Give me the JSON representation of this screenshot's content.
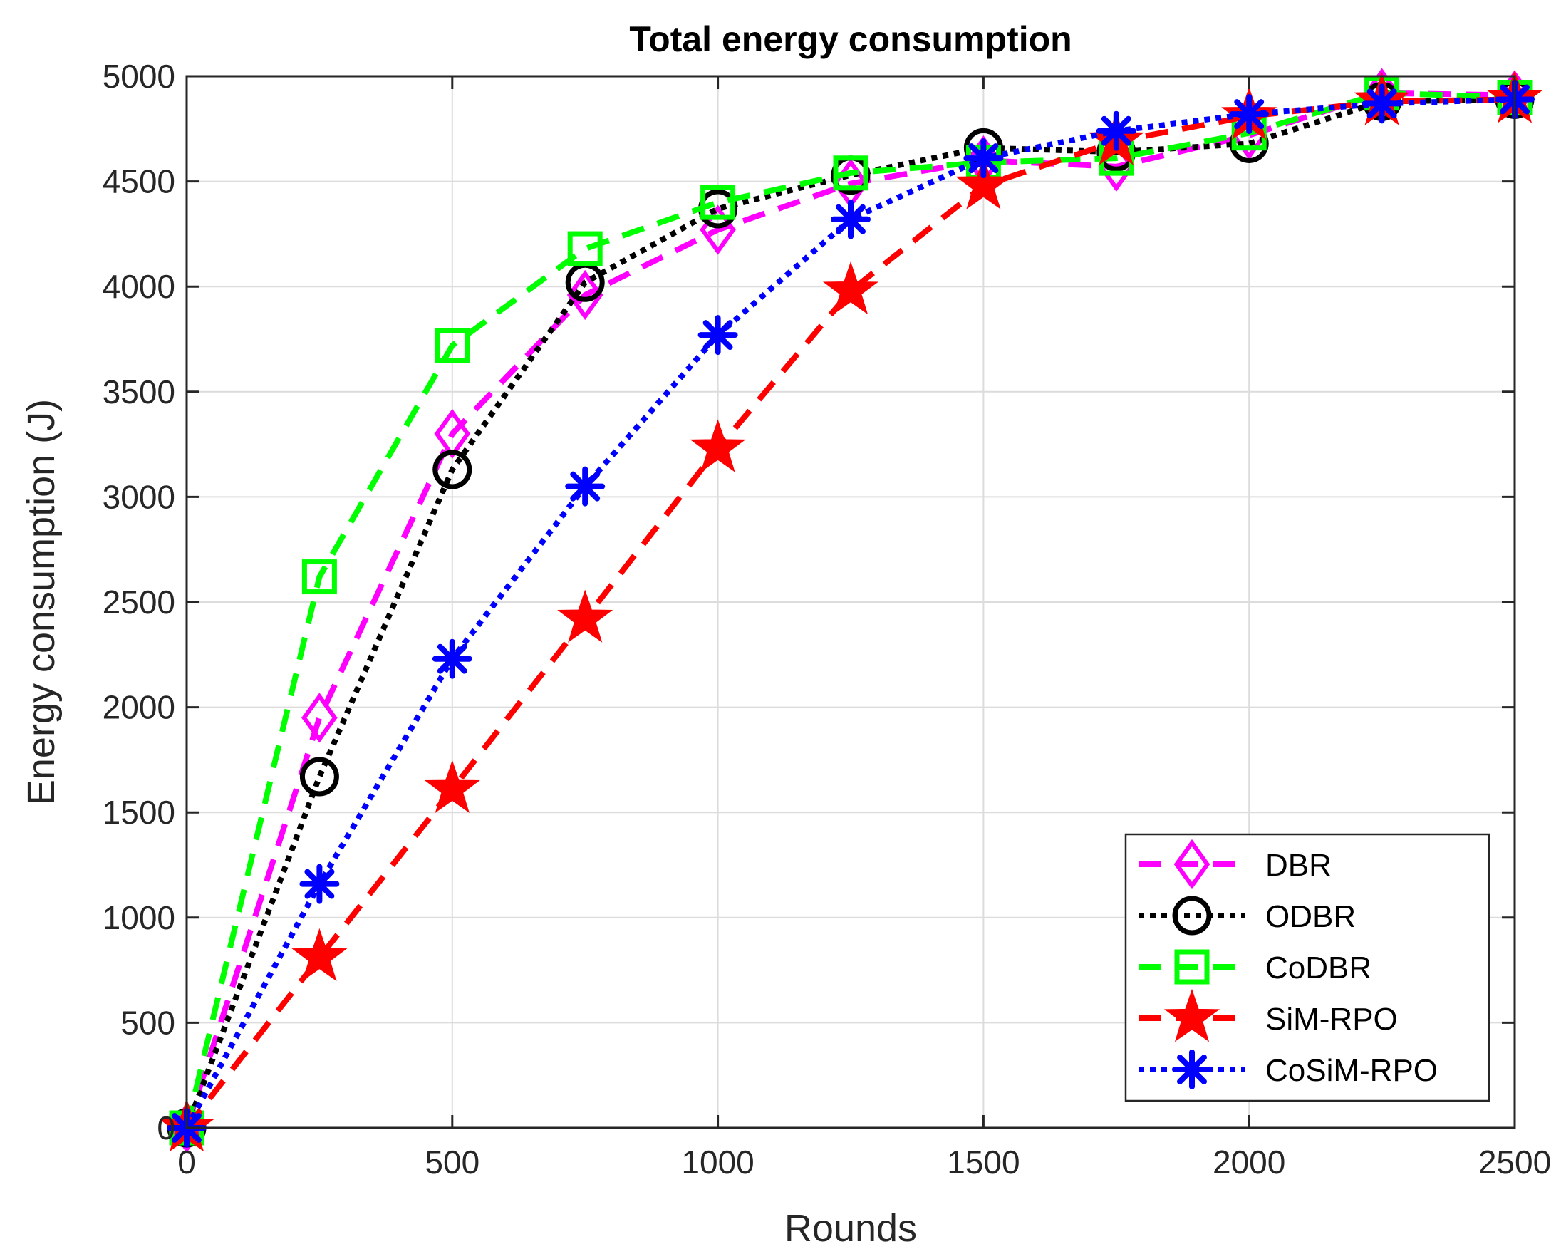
{
  "chart_data": {
    "type": "line",
    "title": "Total energy consumption",
    "xlabel": "Rounds",
    "ylabel": "Energy consumption (J)",
    "xlim": [
      0,
      2500
    ],
    "ylim": [
      0,
      5000
    ],
    "xticks": [
      0,
      500,
      1000,
      1500,
      2000,
      2500
    ],
    "yticks": [
      0,
      500,
      1000,
      1500,
      2000,
      2500,
      3000,
      3500,
      4000,
      4500,
      5000
    ],
    "grid": true,
    "legend_position": "bottom-right",
    "x": [
      0,
      250,
      500,
      750,
      1000,
      1250,
      1500,
      1750,
      2000,
      2250,
      2500
    ],
    "series": [
      {
        "name": "DBR",
        "color": "#ff00ff",
        "linestyle": "dashed",
        "marker": "diamond",
        "values": [
          0,
          1950,
          3300,
          3960,
          4270,
          4490,
          4600,
          4570,
          4720,
          4920,
          4910
        ]
      },
      {
        "name": "ODBR",
        "color": "#000000",
        "linestyle": "dotted",
        "marker": "circle",
        "values": [
          0,
          1670,
          3130,
          4020,
          4370,
          4530,
          4660,
          4640,
          4680,
          4880,
          4890
        ]
      },
      {
        "name": "CoDBR",
        "color": "#00ff00",
        "linestyle": "dashed",
        "marker": "square",
        "values": [
          0,
          2620,
          3720,
          4180,
          4400,
          4540,
          4590,
          4610,
          4730,
          4920,
          4900
        ]
      },
      {
        "name": "SiM-RPO",
        "color": "#ff0000",
        "linestyle": "dashed",
        "marker": "star",
        "values": [
          0,
          810,
          1610,
          2420,
          3230,
          3980,
          4480,
          4690,
          4810,
          4880,
          4890
        ]
      },
      {
        "name": "CoSiM-RPO",
        "color": "#0000ff",
        "linestyle": "dotted",
        "marker": "asterisk",
        "values": [
          0,
          1160,
          2230,
          3050,
          3770,
          4320,
          4610,
          4740,
          4820,
          4870,
          4890
        ]
      }
    ]
  }
}
